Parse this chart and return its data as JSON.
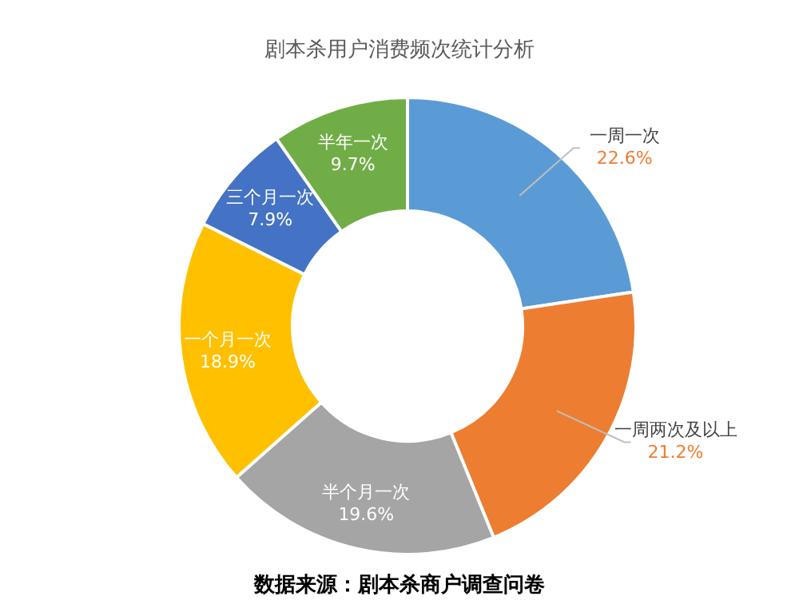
{
  "chart_data": {
    "type": "donut",
    "title": "剧本杀用户消费频次统计分析",
    "categories": [
      "一周一次",
      "一周两次及以上",
      "半个月一次",
      "一个月一次",
      "三个月一次",
      "半年一次"
    ],
    "values": [
      22.6,
      21.2,
      19.6,
      18.9,
      7.9,
      9.7
    ],
    "value_labels": [
      "22.6%",
      "21.2%",
      "19.6%",
      "18.9%",
      "7.9%",
      "9.7%"
    ],
    "colors": [
      "#5b9bd5",
      "#ed7d31",
      "#a5a5a5",
      "#ffc000",
      "#4472c4",
      "#70ad47"
    ],
    "annotations": [
      "数据来源：剧本杀商户调查问卷"
    ],
    "legend": false
  }
}
